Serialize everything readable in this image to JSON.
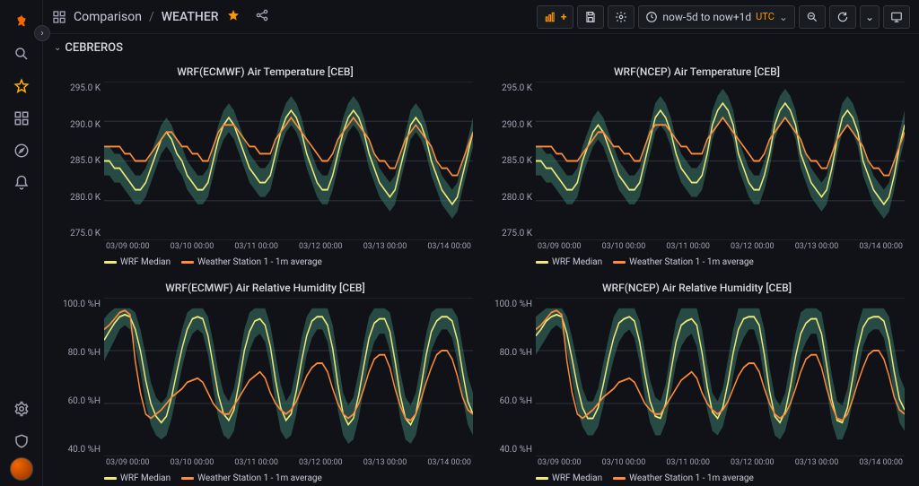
{
  "breadcrumb": {
    "icon": "dashboard",
    "folder": "Comparison",
    "page": "WEATHER"
  },
  "section": {
    "name": "CEBREROS"
  },
  "toolbar": {
    "timerange": "now-5d to now+1d",
    "tz": "UTC"
  },
  "colors": {
    "band": "#3a7a6a",
    "median": "#f2e97a",
    "station": "#ff8c3a",
    "grid": "#2a2d35",
    "bg": "#111217"
  },
  "legend": {
    "median": "WRF Median",
    "station": "Weather Station 1 - 1m average"
  },
  "x_ticks": [
    "03/09 00:00",
    "03/10 00:00",
    "03/11 00:00",
    "03/12 00:00",
    "03/13 00:00",
    "03/14 00:00"
  ],
  "panels": [
    {
      "id": "temp_ecmwf",
      "title": "WRF(ECMWF) Air Temperature [CEB]",
      "y_ticks": [
        "295.0 K",
        "290.0 K",
        "285.0 K",
        "280.0 K",
        "275.0 K"
      ],
      "ylim": [
        274,
        296
      ],
      "band_lo": [
        283,
        283,
        282,
        282,
        281,
        280,
        279,
        279,
        280,
        282,
        284,
        286,
        287,
        286,
        284,
        283,
        281,
        280,
        279,
        279,
        280,
        283,
        286,
        288,
        289,
        288,
        286,
        284,
        282,
        281,
        280,
        280,
        281,
        284,
        287,
        289,
        290,
        289,
        287,
        284,
        282,
        280,
        279,
        279,
        281,
        284,
        287,
        289,
        290,
        289,
        287,
        284,
        282,
        280,
        279,
        278,
        279,
        282,
        285,
        288,
        289,
        288,
        286,
        283,
        281,
        279,
        278,
        277,
        278,
        281,
        284,
        287
      ],
      "band_hi": [
        287,
        287,
        286,
        286,
        285,
        284,
        283,
        283,
        284,
        286,
        288,
        290,
        291,
        290,
        288,
        287,
        285,
        284,
        283,
        283,
        284,
        287,
        290,
        292,
        293,
        292,
        290,
        288,
        286,
        285,
        284,
        284,
        285,
        288,
        291,
        293,
        294,
        293,
        291,
        288,
        286,
        284,
        283,
        283,
        285,
        288,
        291,
        293,
        294,
        293,
        291,
        288,
        286,
        284,
        283,
        282,
        283,
        286,
        289,
        292,
        293,
        292,
        290,
        287,
        285,
        283,
        282,
        281,
        282,
        285,
        288,
        291
      ],
      "median": [
        285,
        285,
        284,
        284,
        283,
        282,
        281,
        281,
        282,
        284,
        286,
        288,
        289,
        288,
        286,
        285,
        283,
        282,
        281,
        281,
        282,
        285,
        288,
        290,
        291,
        290,
        288,
        286,
        284,
        283,
        282,
        282,
        283,
        286,
        289,
        291,
        292,
        291,
        289,
        286,
        284,
        282,
        281,
        281,
        283,
        286,
        289,
        291,
        292,
        291,
        289,
        286,
        284,
        282,
        281,
        280,
        281,
        284,
        287,
        290,
        291,
        290,
        288,
        285,
        283,
        281,
        280,
        279,
        280,
        283,
        286,
        289
      ],
      "station": [
        287,
        287,
        287,
        287,
        286,
        286,
        285,
        285,
        285,
        286,
        287,
        288,
        289,
        289,
        288,
        287,
        287,
        286,
        286,
        285,
        285,
        287,
        289,
        290,
        290,
        290,
        289,
        288,
        287,
        287,
        286,
        286,
        286,
        288,
        289,
        290,
        291,
        290,
        289,
        288,
        287,
        286,
        285,
        285,
        286,
        288,
        289,
        290,
        291,
        290,
        289,
        288,
        286,
        285,
        285,
        284,
        284,
        286,
        288,
        289,
        290,
        289,
        288,
        287,
        285,
        284,
        284,
        283,
        283,
        285,
        287,
        289
      ]
    },
    {
      "id": "temp_ncep",
      "title": "WRF(NCEP) Air Temperature [CEB]",
      "y_ticks": [
        "295.0 K",
        "290.0 K",
        "285.0 K",
        "280.0 K",
        "275.0 K"
      ],
      "ylim": [
        274,
        296
      ],
      "band_lo": [
        283,
        283,
        282,
        282,
        281,
        280,
        279,
        279,
        280,
        283,
        285,
        287,
        288,
        287,
        285,
        283,
        281,
        280,
        279,
        279,
        280,
        283,
        286,
        289,
        290,
        289,
        287,
        284,
        282,
        281,
        280,
        280,
        281,
        284,
        288,
        290,
        291,
        290,
        288,
        284,
        282,
        280,
        279,
        279,
        281,
        284,
        288,
        290,
        291,
        290,
        288,
        284,
        282,
        280,
        279,
        278,
        279,
        282,
        286,
        289,
        290,
        289,
        287,
        283,
        281,
        279,
        278,
        277,
        278,
        281,
        285,
        288
      ],
      "band_hi": [
        287,
        287,
        286,
        286,
        285,
        284,
        283,
        283,
        284,
        287,
        289,
        291,
        292,
        291,
        289,
        287,
        285,
        284,
        283,
        283,
        284,
        287,
        290,
        293,
        294,
        293,
        291,
        288,
        286,
        285,
        284,
        284,
        285,
        288,
        292,
        294,
        295,
        294,
        292,
        288,
        286,
        284,
        283,
        283,
        285,
        288,
        292,
        294,
        295,
        294,
        292,
        288,
        286,
        284,
        283,
        282,
        283,
        286,
        290,
        293,
        294,
        293,
        291,
        287,
        285,
        283,
        282,
        281,
        282,
        285,
        289,
        292
      ],
      "median": [
        285,
        285,
        284,
        284,
        283,
        282,
        281,
        281,
        282,
        285,
        287,
        289,
        290,
        289,
        287,
        285,
        283,
        282,
        281,
        281,
        282,
        285,
        288,
        291,
        292,
        291,
        289,
        286,
        284,
        283,
        282,
        282,
        283,
        286,
        290,
        292,
        293,
        292,
        290,
        286,
        284,
        282,
        281,
        281,
        283,
        286,
        290,
        292,
        293,
        292,
        290,
        286,
        284,
        282,
        281,
        280,
        281,
        284,
        288,
        291,
        292,
        291,
        289,
        285,
        283,
        281,
        280,
        279,
        280,
        283,
        287,
        290
      ],
      "station": [
        287,
        287,
        287,
        287,
        286,
        286,
        285,
        285,
        285,
        286,
        287,
        288,
        289,
        289,
        288,
        287,
        287,
        286,
        286,
        285,
        285,
        287,
        289,
        290,
        290,
        290,
        289,
        288,
        287,
        287,
        286,
        286,
        286,
        288,
        289,
        290,
        291,
        290,
        289,
        288,
        287,
        286,
        285,
        285,
        286,
        288,
        289,
        290,
        291,
        290,
        289,
        288,
        286,
        285,
        285,
        284,
        284,
        286,
        288,
        289,
        290,
        289,
        288,
        287,
        285,
        284,
        284,
        283,
        283,
        285,
        287,
        289
      ]
    },
    {
      "id": "rh_ecmwf",
      "title": "WRF(ECMWF) Air Relative Humidity [CEB]",
      "y_ticks": [
        "100.0 %H",
        "80.0 %H",
        "60.0 %H",
        "40.0 %H"
      ],
      "ylim": [
        30,
        105
      ],
      "band_lo": [
        75,
        80,
        85,
        90,
        92,
        90,
        82,
        70,
        55,
        45,
        40,
        38,
        40,
        48,
        60,
        72,
        82,
        88,
        90,
        88,
        78,
        62,
        48,
        40,
        38,
        42,
        55,
        70,
        80,
        86,
        88,
        84,
        72,
        55,
        42,
        38,
        40,
        50,
        65,
        78,
        86,
        90,
        90,
        84,
        70,
        52,
        40,
        36,
        38,
        48,
        62,
        76,
        84,
        88,
        88,
        80,
        65,
        48,
        38,
        36,
        40,
        52,
        68,
        80,
        86,
        90,
        90,
        86,
        75,
        58,
        45,
        40
      ],
      "band_hi": [
        95,
        98,
        100,
        100,
        100,
        100,
        98,
        90,
        78,
        65,
        58,
        55,
        58,
        68,
        80,
        90,
        98,
        100,
        100,
        100,
        96,
        84,
        70,
        60,
        56,
        62,
        76,
        90,
        98,
        100,
        100,
        100,
        92,
        78,
        64,
        56,
        60,
        72,
        86,
        96,
        100,
        100,
        100,
        100,
        92,
        76,
        60,
        54,
        58,
        70,
        84,
        96,
        100,
        100,
        100,
        98,
        86,
        70,
        58,
        54,
        60,
        74,
        88,
        98,
        100,
        100,
        100,
        100,
        96,
        82,
        68,
        60
      ],
      "median": [
        85,
        89,
        93,
        96,
        97,
        96,
        90,
        80,
        66,
        55,
        49,
        46,
        49,
        58,
        70,
        81,
        90,
        95,
        96,
        95,
        87,
        73,
        59,
        50,
        47,
        52,
        65,
        80,
        89,
        94,
        95,
        92,
        82,
        66,
        53,
        47,
        50,
        61,
        75,
        87,
        94,
        96,
        96,
        92,
        81,
        64,
        50,
        45,
        48,
        59,
        73,
        86,
        93,
        95,
        95,
        89,
        75,
        59,
        48,
        45,
        50,
        63,
        78,
        89,
        94,
        96,
        96,
        94,
        85,
        70,
        56,
        50
      ],
      "station": [
        90,
        92,
        95,
        98,
        99,
        97,
        75,
        60,
        50,
        48,
        50,
        52,
        55,
        58,
        60,
        62,
        65,
        66,
        67,
        65,
        60,
        55,
        52,
        50,
        50,
        54,
        58,
        62,
        66,
        68,
        70,
        67,
        60,
        55,
        52,
        50,
        52,
        56,
        62,
        68,
        72,
        74,
        74,
        70,
        62,
        55,
        50,
        48,
        50,
        55,
        62,
        70,
        76,
        78,
        78,
        72,
        62,
        54,
        48,
        47,
        50,
        57,
        65,
        72,
        78,
        80,
        80,
        76,
        68,
        58,
        52,
        50
      ]
    },
    {
      "id": "rh_ncep",
      "title": "WRF(NCEP) Air Relative Humidity [CEB]",
      "y_ticks": [
        "100.0 %H",
        "80.0 %H",
        "60.0 %H",
        "40.0 %H"
      ],
      "ylim": [
        30,
        105
      ],
      "band_lo": [
        78,
        82,
        86,
        90,
        92,
        90,
        80,
        66,
        52,
        44,
        40,
        40,
        44,
        54,
        66,
        76,
        84,
        88,
        90,
        86,
        74,
        58,
        46,
        40,
        40,
        46,
        60,
        74,
        82,
        86,
        88,
        82,
        68,
        52,
        42,
        40,
        44,
        54,
        68,
        80,
        86,
        90,
        90,
        82,
        66,
        50,
        40,
        38,
        42,
        52,
        66,
        78,
        84,
        88,
        88,
        78,
        62,
        46,
        38,
        38,
        44,
        56,
        70,
        82,
        88,
        90,
        90,
        86,
        74,
        58,
        46,
        42
      ],
      "band_hi": [
        96,
        98,
        100,
        100,
        100,
        100,
        96,
        86,
        74,
        62,
        56,
        56,
        62,
        74,
        86,
        96,
        100,
        100,
        100,
        100,
        94,
        80,
        66,
        58,
        56,
        64,
        80,
        94,
        100,
        100,
        100,
        100,
        90,
        74,
        60,
        56,
        62,
        76,
        90,
        100,
        100,
        100,
        100,
        100,
        90,
        72,
        58,
        54,
        60,
        74,
        88,
        98,
        100,
        100,
        100,
        98,
        84,
        68,
        56,
        54,
        62,
        78,
        92,
        100,
        100,
        100,
        100,
        100,
        96,
        82,
        68,
        62
      ],
      "median": [
        87,
        90,
        94,
        96,
        97,
        96,
        88,
        76,
        63,
        53,
        48,
        48,
        53,
        64,
        76,
        86,
        93,
        95,
        96,
        94,
        84,
        69,
        56,
        49,
        48,
        55,
        70,
        84,
        92,
        94,
        95,
        92,
        79,
        63,
        51,
        48,
        53,
        65,
        79,
        90,
        95,
        96,
        96,
        92,
        78,
        61,
        49,
        46,
        51,
        63,
        77,
        88,
        93,
        95,
        95,
        88,
        73,
        57,
        47,
        46,
        53,
        67,
        81,
        91,
        95,
        96,
        96,
        94,
        85,
        70,
        57,
        52
      ],
      "station": [
        90,
        92,
        95,
        98,
        99,
        97,
        75,
        60,
        50,
        48,
        50,
        52,
        55,
        58,
        60,
        62,
        65,
        66,
        67,
        65,
        60,
        55,
        52,
        50,
        50,
        54,
        58,
        62,
        66,
        68,
        70,
        67,
        60,
        55,
        52,
        50,
        52,
        56,
        62,
        68,
        72,
        74,
        74,
        70,
        62,
        55,
        50,
        48,
        50,
        55,
        62,
        70,
        76,
        78,
        78,
        72,
        62,
        54,
        48,
        47,
        50,
        57,
        65,
        72,
        78,
        80,
        80,
        76,
        68,
        58,
        52,
        50
      ]
    }
  ]
}
